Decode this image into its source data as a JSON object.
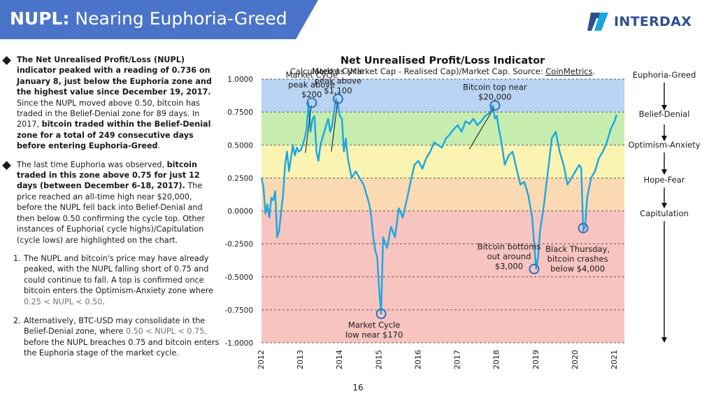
{
  "header": {
    "title_bold": "NUPL:",
    "title_rest": " Nearing Euphoria-Greed",
    "banner_color": "#4a74c9"
  },
  "logo": {
    "text": "INTERDAX",
    "icon": "interdax-logo-icon"
  },
  "body": {
    "p1_bold": "The Net Unrealised Profit/Loss (NUPL) indicator peaked with a reading of 0.736 on January 8, just below the Euphoria zone and the highest value since December 19, 2017.",
    "p1_a": " Since the NUPL moved above 0.50, bitcoin has traded in the Belief-Denial zone for 89 days. In 2017, ",
    "p1_bold2": "bitcoin traded within the Belief-Denial zone for a total of 249 consecutive days before entering Euphoria-Greed",
    "p1_end": ".",
    "p2_a": "The last time Euphoria was observed, ",
    "p2_bold": "bitcoin traded in this zone above 0.75 for just 12 days (between December 6-18, 2017).",
    "p2_b": " The price reached an all-time high near $20,000, before the NUPL fell back into Belief-Denial and then below 0.50 confirming the cycle top. Other instances of Euphoria( cycle highs)/Capitulation (cycle lows) are highlighted on the chart.",
    "item1_num": "1.",
    "item1_a": "The NUPL and bitcoin's price may have already peaked, with the NUPL falling short of 0.75 and could continue to fall. A top is confirmed once bitcoin enters the Optimism-Anxiety zone where ",
    "item1_range": "0.25  < NUPL < 0.50",
    "item1_end": ".",
    "item2_num": "2.",
    "item2_a": "Alternatively, BTC-USD may consolidate in the Belief-Denial zone, where ",
    "item2_range": "0.50 < NUPL < 0.75,",
    "item2_b": " before the NUPL breaches 0.75 and bitcoin enters the Euphoria stage of the market cycle."
  },
  "zones": {
    "labels": [
      "Euphoria-Greed",
      "Belief-Denial",
      "Optimism-Anxiety",
      "Hope-Fear",
      "Capitulation"
    ],
    "arrow_icon": "down-arrow-icon"
  },
  "page_number": "16",
  "colors": {
    "line": "#1aa7e0",
    "marker": "#2e6fbf",
    "euphoria": "#b9d3f2",
    "belief": "#c6ecb0",
    "optimism": "#fbf3b2",
    "hope": "#fbd9b3",
    "capitulation": "#f8c4c0"
  },
  "chart_data": {
    "type": "line",
    "title": "Net Unrealised Profit/Loss Indicator",
    "subtitle": "Calculated as (Market Cap - Realised Cap)/Market Cap. Source: ",
    "source_link": "CoinMetrics",
    "subtitle_end": ".",
    "ylim": [
      -1.0,
      1.0
    ],
    "xlim": [
      2012,
      2021.25
    ],
    "yticks": [
      1.0,
      0.75,
      0.5,
      0.25,
      0.0,
      -0.25,
      -0.5,
      -0.75,
      -1.0
    ],
    "ytick_labels": [
      "1.0000",
      "0.7500",
      "0.5000",
      "0.2500",
      "0.0000",
      "-0.2500",
      "-0.5000",
      "-0.7500",
      "-1.0000"
    ],
    "xticks": [
      2012,
      2013,
      2014,
      2015,
      2016,
      2017,
      2018,
      2019,
      2020,
      2021
    ],
    "xtick_labels": [
      "2012",
      "2013",
      "2014",
      "2015",
      "2016",
      "2017",
      "2018",
      "2019",
      "2020",
      "2021"
    ],
    "grid": "horizontal dashed",
    "bands": [
      {
        "name": "Euphoria-Greed",
        "from": 0.75,
        "to": 1.0,
        "color": "#b9d3f2"
      },
      {
        "name": "Belief-Denial",
        "from": 0.5,
        "to": 0.75,
        "color": "#c6ecb0"
      },
      {
        "name": "Optimism-Anxiety",
        "from": 0.25,
        "to": 0.5,
        "color": "#fbf3b2"
      },
      {
        "name": "Hope-Fear",
        "from": 0.0,
        "to": 0.25,
        "color": "#fbd9b3"
      },
      {
        "name": "Capitulation",
        "from": -1.0,
        "to": 0.0,
        "color": "#f8c4c0"
      }
    ],
    "series": [
      {
        "x": [
          2012.0,
          2012.05,
          2012.1,
          2012.15,
          2012.2,
          2012.25,
          2012.3,
          2012.35,
          2012.4,
          2012.45,
          2012.5,
          2012.55,
          2012.6,
          2012.65,
          2012.7,
          2012.75,
          2012.8,
          2012.85,
          2012.9,
          2012.95,
          2013.0,
          2013.05,
          2013.1,
          2013.15,
          2013.2,
          2013.25,
          2013.3,
          2013.35,
          2013.4,
          2013.45,
          2013.5,
          2013.55,
          2013.6,
          2013.65,
          2013.7,
          2013.75,
          2013.8,
          2013.85,
          2013.9,
          2013.95,
          2014.0,
          2014.05,
          2014.1,
          2014.15,
          2014.2,
          2014.3,
          2014.4,
          2014.5,
          2014.6,
          2014.7,
          2014.75,
          2014.8,
          2014.85,
          2014.9,
          2014.95,
          2015.0,
          2015.05,
          2015.1,
          2015.2,
          2015.3,
          2015.4,
          2015.5,
          2015.6,
          2015.7,
          2015.8,
          2015.9,
          2016.0,
          2016.1,
          2016.2,
          2016.3,
          2016.4,
          2016.5,
          2016.6,
          2016.7,
          2016.8,
          2016.9,
          2017.0,
          2017.1,
          2017.2,
          2017.3,
          2017.4,
          2017.5,
          2017.6,
          2017.7,
          2017.8,
          2017.9,
          2017.95,
          2018.0,
          2018.05,
          2018.1,
          2018.2,
          2018.3,
          2018.4,
          2018.5,
          2018.6,
          2018.7,
          2018.8,
          2018.9,
          2018.95,
          2019.0,
          2019.05,
          2019.1,
          2019.2,
          2019.3,
          2019.4,
          2019.5,
          2019.6,
          2019.7,
          2019.8,
          2019.9,
          2020.0,
          2020.1,
          2020.15,
          2020.2,
          2020.25,
          2020.3,
          2020.4,
          2020.5,
          2020.6,
          2020.7,
          2020.8,
          2020.9,
          2021.0,
          2021.05
        ],
        "y": [
          0.25,
          0.18,
          -0.02,
          0.05,
          -0.05,
          0.1,
          0.08,
          0.15,
          -0.2,
          -0.15,
          0.0,
          0.12,
          0.35,
          0.45,
          0.3,
          0.4,
          0.5,
          0.42,
          0.48,
          0.45,
          0.46,
          0.5,
          0.55,
          0.62,
          0.82,
          0.6,
          0.7,
          0.72,
          0.45,
          0.38,
          0.5,
          0.55,
          0.6,
          0.65,
          0.7,
          0.6,
          0.65,
          0.75,
          0.85,
          0.8,
          0.72,
          0.7,
          0.45,
          0.55,
          0.4,
          0.25,
          0.3,
          0.25,
          0.2,
          0.1,
          0.05,
          -0.05,
          -0.2,
          -0.3,
          -0.35,
          -0.6,
          -0.78,
          -0.2,
          -0.28,
          -0.12,
          -0.2,
          0.02,
          -0.05,
          0.08,
          0.22,
          0.35,
          0.38,
          0.32,
          0.4,
          0.45,
          0.52,
          0.5,
          0.48,
          0.55,
          0.58,
          0.62,
          0.65,
          0.6,
          0.68,
          0.66,
          0.7,
          0.65,
          0.68,
          0.72,
          0.74,
          0.8,
          0.7,
          0.72,
          0.62,
          0.55,
          0.35,
          0.42,
          0.45,
          0.32,
          0.2,
          0.22,
          0.12,
          -0.05,
          -0.25,
          -0.44,
          -0.35,
          -0.15,
          0.05,
          0.3,
          0.55,
          0.6,
          0.45,
          0.35,
          0.2,
          0.25,
          0.3,
          0.35,
          0.32,
          -0.15,
          -0.12,
          0.1,
          0.25,
          0.3,
          0.4,
          0.45,
          0.52,
          0.62,
          0.68,
          0.73
        ]
      }
    ],
    "annotations": [
      {
        "lines": [
          "Market Cycle",
          "peak above",
          "$200"
        ],
        "x": 2013.28,
        "y": 0.82
      },
      {
        "lines": [
          "Market Cycle",
          "peak above",
          "$1,100"
        ],
        "x": 2013.95,
        "y": 0.85
      },
      {
        "lines": [
          "Bitcoin top near",
          "$20,000"
        ],
        "x": 2017.95,
        "y": 0.8
      },
      {
        "lines": [
          "Bitcoin bottoms",
          "out around",
          "$3,000"
        ],
        "x": 2018.95,
        "y": -0.44
      },
      {
        "lines": [
          "Black Thursday,",
          "bitcoin crashes",
          "below $4,000"
        ],
        "x": 2020.2,
        "y": -0.13
      },
      {
        "lines": [
          "Market Cycle",
          "low near $170"
        ],
        "x": 2015.05,
        "y": -0.78
      }
    ]
  }
}
